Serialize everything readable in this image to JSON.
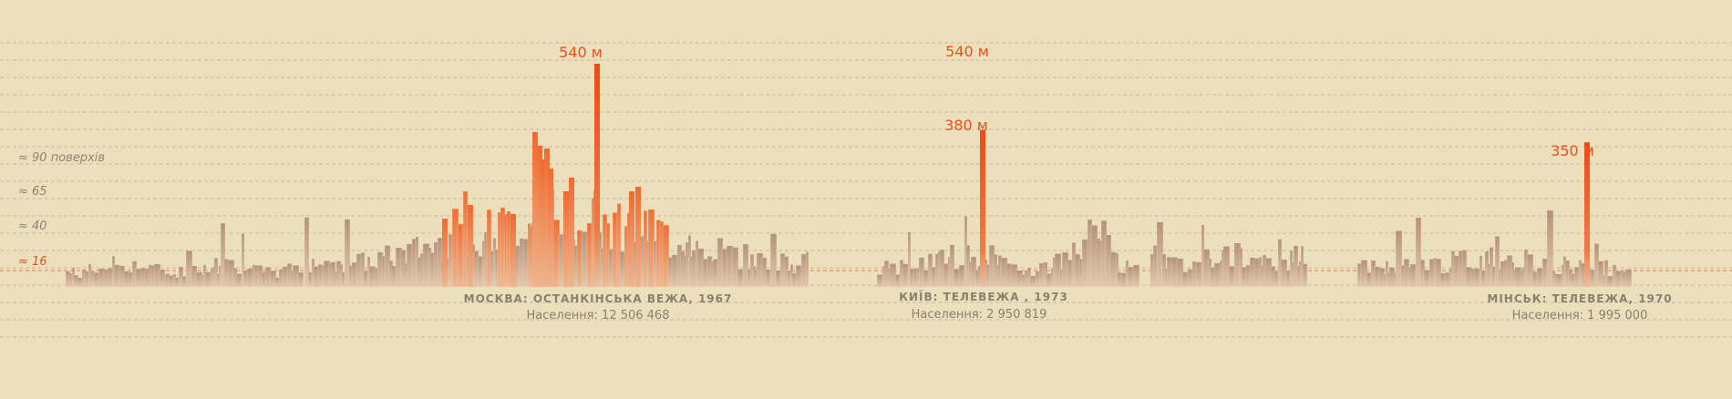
{
  "chart_data": {
    "type": "bar",
    "title": "",
    "xlabel": "",
    "ylabel": "",
    "floor_levels": [
      {
        "label": "≈ 16",
        "floors": 16,
        "highlight": true
      },
      {
        "label": "≈ 40",
        "floors": 40,
        "highlight": false
      },
      {
        "label": "≈ 65",
        "floors": 65,
        "highlight": false
      },
      {
        "label": "≈ 90 поверхів",
        "floors": 90,
        "highlight": false
      }
    ],
    "towers": [
      {
        "city": "moscow",
        "height_label": "540 м",
        "height_m": 540
      },
      {
        "city": "kyiv",
        "height_label": "380 м",
        "height_m": 380
      },
      {
        "city": "kyiv-planned",
        "height_label": "540 м",
        "height_m": 540
      },
      {
        "city": "minsk",
        "height_label": "350 м",
        "height_m": 350
      }
    ],
    "cities": [
      {
        "id": "moscow",
        "name": "МОСКВА: ОСТАНКІНСЬКА ВЕЖА, 1967",
        "population": "Населення: 12 506 468"
      },
      {
        "id": "kyiv",
        "name": "КИЇВ: ТЕЛЕВЕЖА , 1973",
        "population": "Населення: 2 950 819"
      },
      {
        "id": "minsk",
        "name": "МІНСЬК: ТЕЛЕВЕЖА, 1970",
        "population": "Населення: 1 995 000"
      }
    ],
    "colors": {
      "background": "#ecdfbc",
      "gridline": "#c9bba0",
      "highlight": "#e8501e",
      "building_light": "#e7c3a4",
      "building_dark": "#a98a74",
      "building_hot": "#f0743a"
    }
  }
}
